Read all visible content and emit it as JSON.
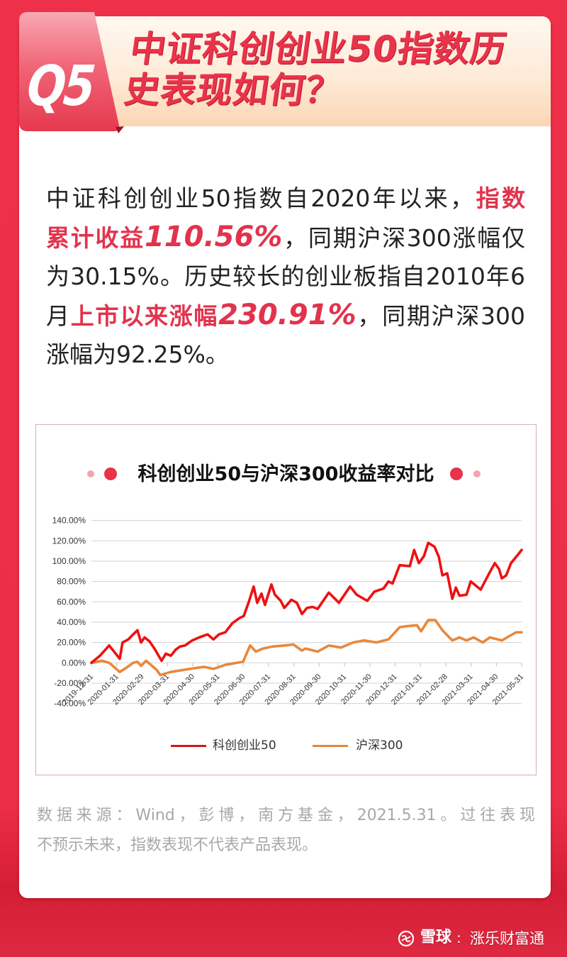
{
  "header": {
    "badge": "Q5",
    "title_line1": "中证科创创业50指数历",
    "title_line2": "史表现如何？"
  },
  "body": {
    "lines": [
      {
        "segments": [
          {
            "text": "中证科创创业50指数自2020年以来，",
            "style": "normal"
          },
          {
            "text": "指数",
            "style": "highlight"
          }
        ]
      },
      {
        "segments": [
          {
            "text": "累计收益",
            "style": "highlight"
          },
          {
            "text": "110.56%",
            "style": "number"
          },
          {
            "text": "，同期沪深300涨幅仅",
            "style": "normal"
          }
        ]
      },
      {
        "segments": [
          {
            "text": "为30.15%。历史较长的创业板指自2010年6",
            "style": "normal"
          }
        ]
      },
      {
        "segments": [
          {
            "text": "月",
            "style": "normal"
          },
          {
            "text": "上市以来涨幅",
            "style": "highlight"
          },
          {
            "text": "230.91%",
            "style": "number"
          },
          {
            "text": "，同期沪深300",
            "style": "normal"
          }
        ]
      },
      {
        "segments": [
          {
            "text": "涨幅为92.25%。",
            "style": "normal"
          }
        ]
      }
    ]
  },
  "chart": {
    "title": "科创创业50与沪深300收益率对比",
    "legend": [
      {
        "label": "科创创业50",
        "color": "#D01818"
      },
      {
        "label": "沪深300",
        "color": "#E0883C"
      }
    ]
  },
  "chart_data": {
    "type": "line",
    "title": "科创创业50与沪深300收益率对比",
    "xlabel": "",
    "ylabel": "",
    "x_tick_labels": [
      "2019-12-31",
      "2020-01-31",
      "2020-02-29",
      "2020-03-31",
      "2020-04-30",
      "2020-05-31",
      "2020-06-30",
      "2020-07-31",
      "2020-08-31",
      "2020-09-30",
      "2020-10-31",
      "2020-11-30",
      "2020-12-31",
      "2021-01-31",
      "2021-02-28",
      "2021-03-31",
      "2021-04-30",
      "2021-05-31"
    ],
    "y_tick_labels": [
      "140.00%",
      "120.00%",
      "100.00%",
      "80.00%",
      "60.00%",
      "40.00%",
      "20.00%",
      "0.00%",
      "-20.00%",
      "-40.00%"
    ],
    "ylim": [
      -40,
      140
    ],
    "ytick_step": 20,
    "grid": true,
    "legend_position": "bottom",
    "points_x_is_tick_index": true,
    "series": [
      {
        "name": "科创创业50",
        "color": "#EE1111",
        "points": [
          [
            0,
            0
          ],
          [
            0.34,
            7
          ],
          [
            0.7,
            17
          ],
          [
            1.12,
            4
          ],
          [
            1.23,
            20
          ],
          [
            1.46,
            23
          ],
          [
            1.65,
            28
          ],
          [
            1.82,
            32
          ],
          [
            1.96,
            20
          ],
          [
            2.1,
            25
          ],
          [
            2.3,
            21
          ],
          [
            2.49,
            14
          ],
          [
            2.77,
            2
          ],
          [
            2.94,
            9
          ],
          [
            3.14,
            7
          ],
          [
            3.33,
            13
          ],
          [
            3.5,
            16
          ],
          [
            3.7,
            17
          ],
          [
            3.98,
            22
          ],
          [
            4.26,
            25
          ],
          [
            4.59,
            28
          ],
          [
            4.82,
            23
          ],
          [
            5.04,
            28
          ],
          [
            5.29,
            30
          ],
          [
            5.57,
            39
          ],
          [
            5.85,
            44
          ],
          [
            6.02,
            46
          ],
          [
            6.22,
            60
          ],
          [
            6.41,
            75
          ],
          [
            6.55,
            59
          ],
          [
            6.72,
            68
          ],
          [
            6.86,
            57
          ],
          [
            7.11,
            77
          ],
          [
            7.25,
            67
          ],
          [
            7.48,
            61
          ],
          [
            7.62,
            54
          ],
          [
            7.9,
            62
          ],
          [
            8.12,
            59
          ],
          [
            8.32,
            48
          ],
          [
            8.52,
            54
          ],
          [
            8.74,
            55
          ],
          [
            8.94,
            53
          ],
          [
            9.38,
            69
          ],
          [
            9.78,
            59
          ],
          [
            10.22,
            75
          ],
          [
            10.48,
            67
          ],
          [
            10.9,
            61
          ],
          [
            11.18,
            70
          ],
          [
            11.54,
            73
          ],
          [
            11.74,
            80
          ],
          [
            11.9,
            78
          ],
          [
            12.18,
            96
          ],
          [
            12.58,
            95
          ],
          [
            12.75,
            111
          ],
          [
            12.94,
            98
          ],
          [
            13.14,
            105
          ],
          [
            13.31,
            118
          ],
          [
            13.56,
            114
          ],
          [
            13.73,
            104
          ],
          [
            13.87,
            86
          ],
          [
            14.06,
            88
          ],
          [
            14.26,
            63
          ],
          [
            14.4,
            74
          ],
          [
            14.54,
            66
          ],
          [
            14.82,
            67
          ],
          [
            14.99,
            80
          ],
          [
            15.38,
            72
          ],
          [
            15.74,
            89
          ],
          [
            15.94,
            98
          ],
          [
            16.11,
            92
          ],
          [
            16.22,
            83
          ],
          [
            16.39,
            86
          ],
          [
            16.58,
            98
          ],
          [
            16.81,
            105
          ],
          [
            17,
            111
          ]
        ]
      },
      {
        "name": "沪深300",
        "color": "#E8883C",
        "points": [
          [
            0,
            0
          ],
          [
            0.42,
            2
          ],
          [
            0.7,
            0
          ],
          [
            1.12,
            -9
          ],
          [
            1.37,
            -5
          ],
          [
            1.65,
            0
          ],
          [
            1.82,
            1
          ],
          [
            1.96,
            -3
          ],
          [
            2.16,
            2
          ],
          [
            2.35,
            -2
          ],
          [
            2.58,
            -7
          ],
          [
            2.72,
            -12
          ],
          [
            3.14,
            -9
          ],
          [
            3.89,
            -6
          ],
          [
            4.45,
            -4
          ],
          [
            4.82,
            -6
          ],
          [
            5.29,
            -2
          ],
          [
            5.74,
            0
          ],
          [
            5.99,
            1
          ],
          [
            6.27,
            17
          ],
          [
            6.5,
            11
          ],
          [
            6.78,
            14
          ],
          [
            7.14,
            16
          ],
          [
            7.62,
            17
          ],
          [
            7.98,
            18
          ],
          [
            8.32,
            12
          ],
          [
            8.46,
            14
          ],
          [
            8.94,
            11
          ],
          [
            9.38,
            17
          ],
          [
            9.86,
            15
          ],
          [
            10.34,
            20
          ],
          [
            10.78,
            22
          ],
          [
            11.26,
            20
          ],
          [
            11.74,
            23
          ],
          [
            12.18,
            35
          ],
          [
            12.46,
            36
          ],
          [
            12.86,
            37
          ],
          [
            13.03,
            31
          ],
          [
            13.31,
            42
          ],
          [
            13.59,
            42
          ],
          [
            13.87,
            32
          ],
          [
            14.26,
            22
          ],
          [
            14.54,
            25
          ],
          [
            14.82,
            22
          ],
          [
            15.1,
            25
          ],
          [
            15.46,
            20
          ],
          [
            15.74,
            25
          ],
          [
            16.22,
            22
          ],
          [
            16.5,
            26
          ],
          [
            16.78,
            30
          ],
          [
            17,
            30
          ]
        ]
      }
    ]
  },
  "source": {
    "line1": "数据来源：Wind，彭博，南方基金，2021.5.31。过往表现",
    "line2": "不预示未来，指数表现不代表产品表现。"
  },
  "watermark": {
    "icon": "snowball-logo-icon",
    "brand": "雪球",
    "separator": ":",
    "account": "涨乐财富通"
  },
  "colors": {
    "background": "#EC2E46",
    "accent": "#E8334A",
    "highlight_text": "#E2334D",
    "series_red": "#EE1111",
    "series_orange": "#E8883C",
    "dot_light": "#F2A5AD",
    "dot_dark": "#E8334A"
  }
}
